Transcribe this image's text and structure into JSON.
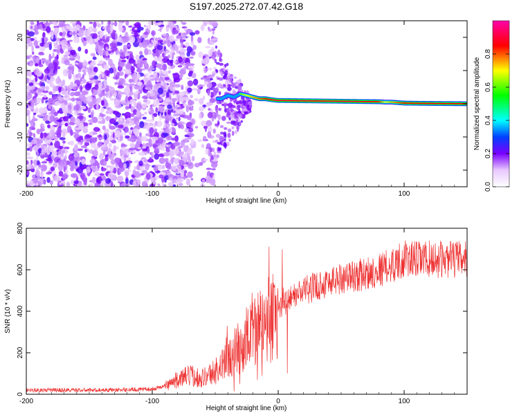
{
  "title": "S197.2025.272.07.42.G18",
  "chart_data": [
    {
      "type": "heatmap",
      "xlabel": "Height of straight line (km)",
      "ylabel": "Frequency (Hz)",
      "xlim": [
        -200,
        150
      ],
      "ylim": [
        -25,
        25
      ],
      "x_ticks": [
        -200,
        -100,
        0,
        100
      ],
      "x_tick_labels": [
        "-200",
        "-100",
        "0",
        "100"
      ],
      "y_ticks": [
        -20,
        -10,
        0,
        10,
        20
      ],
      "y_tick_labels": [
        "-20",
        "-10",
        "0",
        "10",
        "20"
      ],
      "colorbar": {
        "label": "Normalized spectral amplitude",
        "range": [
          0,
          1
        ],
        "ticks": [
          0,
          0.2,
          0.4,
          0.6,
          0.8
        ],
        "tick_labels": [
          "0.0",
          "0.2",
          "0.4",
          "0.6",
          "0.8"
        ]
      },
      "signal_track": {
        "x": [
          -45,
          -40,
          -35,
          -30,
          -25,
          -20,
          -15,
          -10,
          -5,
          0,
          20,
          40,
          60,
          80,
          85,
          90,
          100,
          120,
          150
        ],
        "freq": [
          1.5,
          2.5,
          2.0,
          3.0,
          2.5,
          2.0,
          1.5,
          1.5,
          1.2,
          1.0,
          0.9,
          0.8,
          0.7,
          0.6,
          0.5,
          0.5,
          0.2,
          0.1,
          0.0
        ],
        "amplitude": [
          0.3,
          0.4,
          0.5,
          0.6,
          0.7,
          0.75,
          0.8,
          0.85,
          0.9,
          0.9,
          0.9,
          0.9,
          0.9,
          0.85,
          0.7,
          0.75,
          0.85,
          0.85,
          0.85
        ]
      }
    },
    {
      "type": "line",
      "xlabel": "Height of straight line (km)",
      "ylabel": "SNR (10 * v/v)",
      "xlim": [
        -200,
        150
      ],
      "ylim": [
        0,
        800
      ],
      "x_ticks": [
        -200,
        -100,
        0,
        100
      ],
      "x_tick_labels": [
        "-200",
        "-100",
        "0",
        "100"
      ],
      "y_ticks": [
        0,
        200,
        400,
        600,
        800
      ],
      "y_tick_labels": [
        "0",
        "200",
        "400",
        "600",
        "800"
      ],
      "color": "#ee3333",
      "x": [
        -200,
        -150,
        -120,
        -100,
        -90,
        -80,
        -70,
        -60,
        -50,
        -40,
        -30,
        -20,
        -10,
        0,
        10,
        20,
        30,
        40,
        50,
        60,
        70,
        80,
        90,
        95,
        100,
        110,
        120,
        130,
        140,
        150
      ],
      "y": [
        20,
        20,
        22,
        25,
        40,
        70,
        90,
        80,
        110,
        170,
        230,
        300,
        350,
        400,
        460,
        500,
        520,
        540,
        560,
        570,
        580,
        600,
        620,
        640,
        650,
        650,
        650,
        650,
        650,
        650
      ]
    }
  ]
}
